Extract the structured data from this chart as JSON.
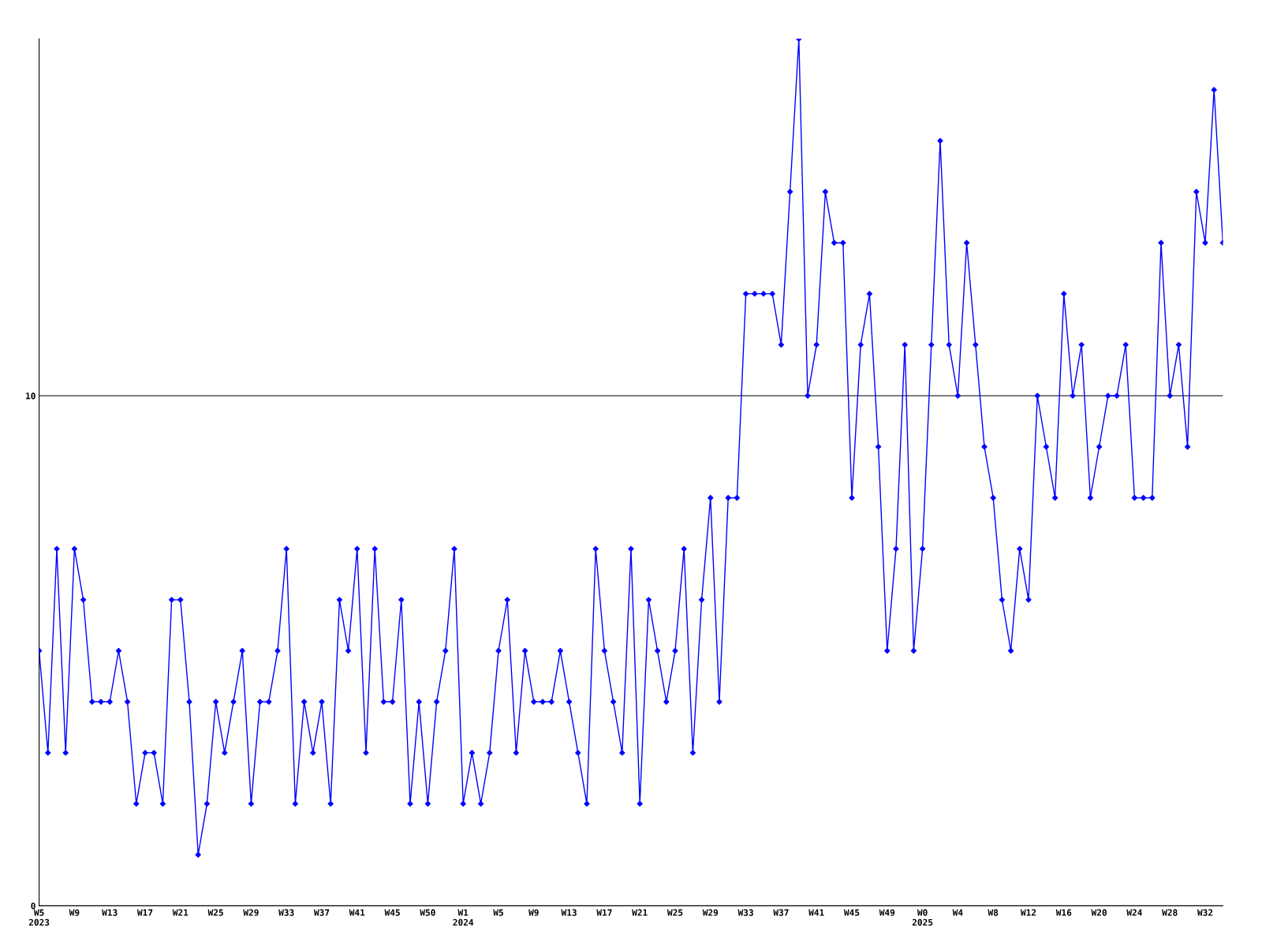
{
  "chart_data": {
    "type": "line",
    "categories": [
      "W5\n2023",
      null,
      null,
      null,
      "W9",
      null,
      null,
      null,
      "W13",
      null,
      null,
      null,
      "W17",
      null,
      null,
      null,
      "W21",
      null,
      null,
      null,
      "W25",
      null,
      null,
      null,
      "W29",
      null,
      null,
      null,
      "W33",
      null,
      null,
      null,
      "W37",
      null,
      null,
      null,
      "W41",
      null,
      null,
      null,
      "W45",
      null,
      null,
      null,
      "W50",
      null,
      null,
      null,
      "W1\n2024",
      null,
      null,
      null,
      "W5",
      null,
      null,
      null,
      "W9",
      null,
      null,
      null,
      "W13",
      null,
      null,
      null,
      "W17",
      null,
      null,
      null,
      "W21",
      null,
      null,
      null,
      "W25",
      null,
      null,
      null,
      "W29",
      null,
      null,
      null,
      "W33",
      null,
      null,
      null,
      "W37",
      null,
      null,
      null,
      "W41",
      null,
      null,
      null,
      "W45",
      null,
      null,
      null,
      "W49",
      null,
      null,
      null,
      "W0\n2025",
      null,
      null,
      null,
      "W4",
      null,
      null,
      null,
      "W8",
      null,
      null,
      null,
      "W12",
      null,
      null,
      null,
      "W16",
      null,
      null,
      null,
      "W20",
      null,
      null,
      null,
      "W24",
      null,
      null,
      null,
      "W28",
      null,
      null,
      null,
      "W32",
      null,
      null
    ],
    "series": [
      {
        "color": "#0000ff",
        "values": [
          5,
          3,
          7,
          3,
          7,
          6,
          4,
          4,
          4,
          5,
          4,
          2,
          3,
          3,
          2,
          6,
          6,
          4,
          1,
          2,
          4,
          3,
          4,
          5,
          2,
          4,
          4,
          5,
          7,
          2,
          4,
          3,
          4,
          2,
          6,
          5,
          7,
          3,
          7,
          4,
          4,
          6,
          2,
          4,
          2,
          4,
          5,
          7,
          2,
          3,
          2,
          3,
          5,
          6,
          3,
          5,
          4,
          4,
          4,
          5,
          4,
          3,
          2,
          7,
          5,
          4,
          3,
          7,
          2,
          6,
          5,
          4,
          5,
          7,
          3,
          6,
          8,
          4,
          8,
          8,
          12,
          12,
          12,
          12,
          11,
          14,
          17,
          10,
          11,
          14,
          13,
          13,
          8,
          11,
          12,
          9,
          5,
          7,
          11,
          5,
          7,
          11,
          15,
          11,
          10,
          13,
          11,
          9,
          8,
          6,
          5,
          7,
          6,
          10,
          9,
          8,
          12,
          10,
          11,
          8,
          9,
          10,
          10,
          11,
          8,
          8,
          8,
          13,
          10,
          11,
          9,
          14,
          13,
          16,
          13
        ]
      }
    ],
    "ylim": [
      0,
      17
    ],
    "yticks": [
      0,
      10
    ],
    "grid": "y",
    "marker": "diamond",
    "line_style": "solid",
    "legend": false
  }
}
